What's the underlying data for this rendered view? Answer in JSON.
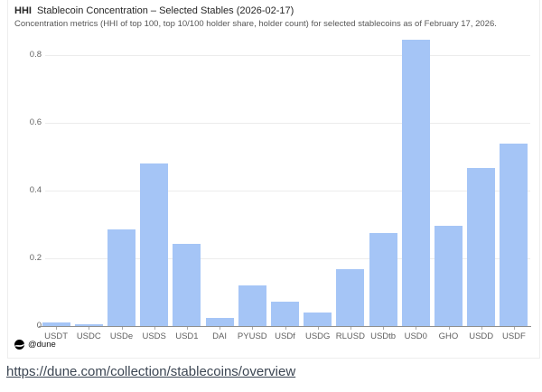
{
  "header": {
    "metric_label": "HHI",
    "title": "Stablecoin Concentration – Selected Stables (2026-02-17)",
    "subtitle": "Concentration metrics (HHI of top 100, top 10/100 holder share, holder count) for selected stablecoins as of February 17, 2026."
  },
  "chart_data": {
    "type": "bar",
    "title": "Stablecoin Concentration – Selected Stables (2026-02-17)",
    "xlabel": "",
    "ylabel": "",
    "categories": [
      "USDT",
      "USDC",
      "USDe",
      "USDS",
      "USD1",
      "DAI",
      "PYUSD",
      "USDf",
      "USDG",
      "RLUSD",
      "USDtb",
      "USD0",
      "GHO",
      "USDD",
      "USDF"
    ],
    "values": [
      0.012,
      0.006,
      0.285,
      0.48,
      0.242,
      0.023,
      0.12,
      0.071,
      0.04,
      0.168,
      0.275,
      0.845,
      0.296,
      0.466,
      0.54
    ],
    "ylim": [
      0,
      0.9
    ],
    "ytick_values": [
      0,
      0.2,
      0.4,
      0.6,
      0.8
    ],
    "ytick_labels": [
      "0",
      "0.2",
      "0.4",
      "0.6",
      "0.8"
    ],
    "grid": "horizontal",
    "legend": "none",
    "bar_color": "#a5c5f6"
  },
  "footer": {
    "watermark": "@dune",
    "url": "https://dune.com/collection/stablecoins/overview"
  },
  "colors": {
    "bar": "#a5c5f6",
    "gridline": "#ececec",
    "axis": "#8f8f8f",
    "title_text": "#262626",
    "subtitle_text": "#575757",
    "label_text": "#5f5f5f",
    "link_text": "#3c4653",
    "card_border": "#ededed"
  }
}
